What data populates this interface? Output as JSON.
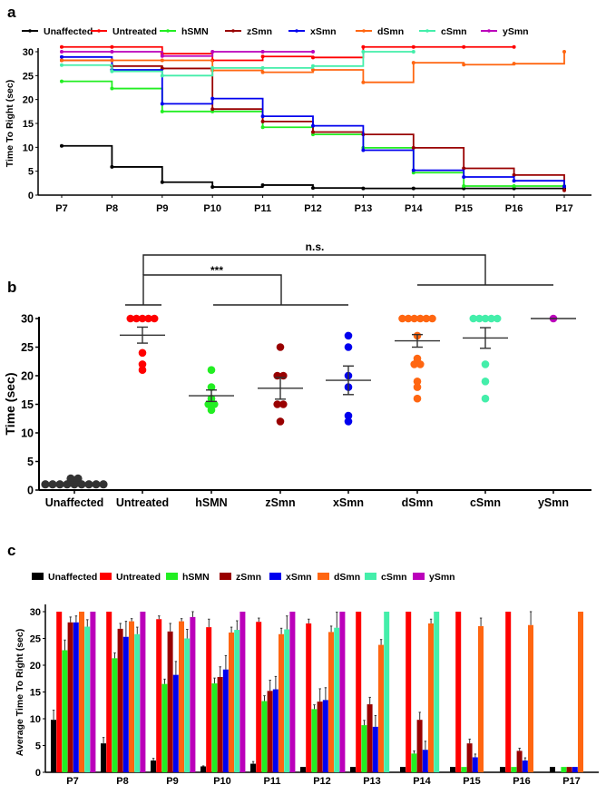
{
  "colors": {
    "Unaffected": "#000000",
    "Untreated": "#ff0000",
    "hSMN": "#22ee22",
    "zSmn": "#990000",
    "xSmn": "#0000ee",
    "dSmn": "#ff6611",
    "cSmn": "#44eeaa",
    "ySmn": "#bb00bb"
  },
  "chart_data": [
    {
      "panel": "a",
      "type": "line",
      "style": "step",
      "xlabel": "",
      "ylabel": "Time To Right (sec)",
      "categories": [
        "P7",
        "P8",
        "P9",
        "P10",
        "P11",
        "P12",
        "P13",
        "P14",
        "P15",
        "P16",
        "P17"
      ],
      "ylim": [
        0,
        30
      ],
      "yticks": [
        0,
        5,
        10,
        15,
        20,
        25,
        30
      ],
      "legend": "top",
      "series": [
        {
          "name": "Unaffected",
          "values": [
            10.3,
            5.9,
            2.7,
            1.7,
            2.1,
            1.5,
            1.4,
            1.4,
            1.4,
            1.4,
            1.4
          ]
        },
        {
          "name": "Untreated",
          "values": [
            31.0,
            31.0,
            29.6,
            28.2,
            29.0,
            28.8,
            31.0,
            31.0,
            31.0,
            31.0,
            null
          ]
        },
        {
          "name": "hSMN",
          "values": [
            23.8,
            22.3,
            17.5,
            17.5,
            14.2,
            12.7,
            9.9,
            4.7,
            1.9,
            1.9,
            1.9
          ]
        },
        {
          "name": "zSmn",
          "values": [
            28.2,
            27.0,
            26.5,
            18.0,
            15.4,
            13.2,
            12.7,
            9.9,
            5.6,
            4.2,
            1.0
          ]
        },
        {
          "name": "xSmn",
          "values": [
            28.9,
            26.2,
            19.1,
            20.2,
            16.5,
            14.5,
            9.4,
            5.2,
            3.8,
            3.0,
            1.8
          ]
        },
        {
          "name": "dSmn",
          "values": [
            28.2,
            28.2,
            28.2,
            26.1,
            25.7,
            26.2,
            23.6,
            27.7,
            27.3,
            27.5,
            30.0
          ]
        },
        {
          "name": "cSmn",
          "values": [
            27.2,
            25.9,
            25.0,
            26.6,
            26.6,
            27.0,
            30.0,
            30.0,
            null,
            null,
            null
          ]
        },
        {
          "name": "ySmn",
          "values": [
            30.0,
            30.0,
            29.1,
            30.0,
            30.0,
            30.0,
            null,
            null,
            null,
            null,
            null
          ]
        }
      ]
    },
    {
      "panel": "b",
      "type": "scatter",
      "xlabel": "",
      "ylabel": "Time (sec)",
      "categories": [
        "Unaffected",
        "Untreated",
        "hSMN",
        "zSmn",
        "xSmn",
        "dSmn",
        "cSmn",
        "ySmn"
      ],
      "ylim": [
        0,
        30
      ],
      "yticks": [
        0,
        5,
        10,
        15,
        20,
        25,
        30
      ],
      "groups": [
        {
          "name": "Unaffected",
          "points": [
            1,
            1,
            2,
            1,
            1,
            1,
            2,
            1,
            1,
            1,
            1
          ],
          "mean": 1.2,
          "sem": 0.15
        },
        {
          "name": "Untreated",
          "points": [
            30,
            30,
            30,
            30,
            30,
            24,
            21,
            22
          ],
          "mean": 27.1,
          "sem": 1.4
        },
        {
          "name": "hSMN",
          "points": [
            21,
            18,
            16,
            15,
            15,
            14
          ],
          "mean": 16.5,
          "sem": 1.0
        },
        {
          "name": "zSmn",
          "points": [
            25,
            20,
            20,
            15,
            15,
            12
          ],
          "mean": 17.8,
          "sem": 1.9
        },
        {
          "name": "xSmn",
          "points": [
            27,
            25,
            20,
            18,
            12,
            13
          ],
          "mean": 19.2,
          "sem": 2.5
        },
        {
          "name": "dSmn",
          "points": [
            30,
            30,
            30,
            30,
            30,
            30,
            27,
            23,
            22,
            22,
            19,
            18,
            16
          ],
          "mean": 26.1,
          "sem": 1.1
        },
        {
          "name": "cSmn",
          "points": [
            30,
            30,
            30,
            30,
            30,
            22,
            19,
            16
          ],
          "mean": 26.6,
          "sem": 1.8
        },
        {
          "name": "ySmn",
          "points": [
            30
          ],
          "mean": 30,
          "sem": 0
        }
      ],
      "annotations": [
        {
          "text": "***",
          "between": [
            "Untreated",
            [
              "hSMN",
              "zSmn",
              "xSmn"
            ]
          ]
        },
        {
          "text": "n.s.",
          "between": [
            "Untreated",
            [
              "dSmn",
              "cSmn",
              "ySmn"
            ]
          ]
        }
      ]
    },
    {
      "panel": "c",
      "type": "bar",
      "xlabel": "",
      "ylabel": "Average Time To Right (sec)",
      "categories": [
        "P7",
        "P8",
        "P9",
        "P10",
        "P11",
        "P12",
        "P13",
        "P14",
        "P15",
        "P16",
        "P17"
      ],
      "ylim": [
        0,
        30
      ],
      "yticks": [
        0,
        5,
        10,
        15,
        20,
        25,
        30
      ],
      "legend": "top",
      "series": [
        {
          "name": "Unaffected",
          "values": [
            9.8,
            5.4,
            2.2,
            1.1,
            1.6,
            1.0,
            1.0,
            1.0,
            1.0,
            1.0,
            1.0
          ],
          "errors": [
            1.8,
            1.1,
            0.4,
            0.1,
            0.4,
            0,
            0,
            0,
            0,
            0,
            0
          ]
        },
        {
          "name": "Untreated",
          "values": [
            30,
            30,
            28.6,
            27.1,
            28.1,
            27.8,
            30,
            30,
            30,
            30,
            null
          ],
          "errors": [
            0,
            0,
            0.6,
            1.5,
            0.7,
            0.8,
            0,
            0,
            0,
            0,
            0
          ]
        },
        {
          "name": "hSMN",
          "values": [
            22.8,
            21.3,
            16.5,
            16.6,
            13.3,
            11.8,
            8.8,
            3.5,
            1.0,
            1.0,
            1.0
          ],
          "errors": [
            1.9,
            1.0,
            0.9,
            1.0,
            1.0,
            0.8,
            0.9,
            0.5,
            0,
            0,
            0
          ]
        },
        {
          "name": "zSmn",
          "values": [
            28.0,
            26.8,
            26.3,
            17.8,
            15.2,
            13.2,
            12.7,
            9.8,
            5.4,
            4.0,
            1.0
          ],
          "errors": [
            1.0,
            1.0,
            1.5,
            1.9,
            2.0,
            2.4,
            1.3,
            1.4,
            0.8,
            0.5,
            0
          ]
        },
        {
          "name": "xSmn",
          "values": [
            28.0,
            25.3,
            18.2,
            19.2,
            15.5,
            13.5,
            8.5,
            4.2,
            2.8,
            2.2,
            1.0
          ],
          "errors": [
            1.2,
            2.9,
            2.5,
            2.6,
            2.4,
            2.3,
            2.1,
            1.6,
            0.6,
            0.5,
            0
          ]
        },
        {
          "name": "dSmn",
          "values": [
            30,
            28.2,
            28.2,
            26.1,
            25.8,
            26.2,
            23.8,
            27.8,
            27.3,
            27.5,
            30
          ],
          "errors": [
            0,
            0.5,
            0.5,
            1.0,
            1.1,
            1.1,
            1.0,
            0.8,
            1.5,
            2.5,
            0
          ]
        },
        {
          "name": "cSmn",
          "values": [
            27.2,
            25.8,
            25.0,
            26.6,
            26.7,
            27.0,
            30,
            30,
            null,
            null,
            null
          ],
          "errors": [
            1.3,
            1.3,
            1.7,
            1.7,
            2.5,
            2.9,
            0,
            0,
            0,
            0,
            0
          ]
        },
        {
          "name": "ySmn",
          "values": [
            30,
            30,
            29.0,
            30,
            30,
            30,
            null,
            null,
            null,
            null,
            null
          ],
          "errors": [
            0,
            0,
            1.0,
            0,
            0,
            0,
            0,
            0,
            0,
            0,
            0
          ]
        }
      ]
    }
  ],
  "labels": {
    "panel_a": "a",
    "panel_b": "b",
    "panel_c": "c",
    "yticks": [
      "0",
      "5",
      "10",
      "15",
      "20",
      "25",
      "30"
    ]
  }
}
